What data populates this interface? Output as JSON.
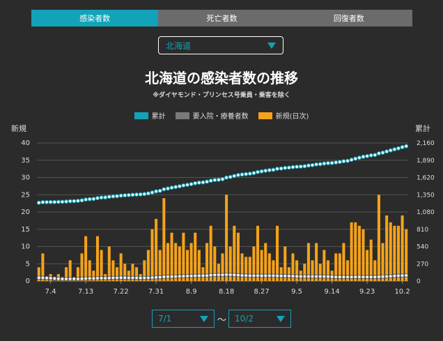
{
  "tabs": [
    {
      "label": "感染者数",
      "active": true
    },
    {
      "label": "死亡者数",
      "active": false
    },
    {
      "label": "回復者数",
      "active": false
    }
  ],
  "region": {
    "selected": "北海道"
  },
  "range": {
    "from": "7/1",
    "to": "10/2",
    "separator": "〜"
  },
  "colors": {
    "accent": "#12a3b8",
    "bars": "#f5a31a",
    "inpatient": "#7a7a7a",
    "cumulative_line": "#7fd3de"
  },
  "chart_data": {
    "type": "bar",
    "title": "北海道の感染者数の推移",
    "subtitle": "※ダイヤモンド・プリンセス号乗員・乗客を除く",
    "left_axis_title": "新規",
    "right_axis_title": "累計",
    "legend": [
      {
        "label": "累計",
        "color": "#12a3b8"
      },
      {
        "label": "要入院・療養者数",
        "color": "#7a7a7a"
      },
      {
        "label": "新規(日次)",
        "color": "#f5a31a"
      }
    ],
    "y_left": {
      "min": 0,
      "max": 40,
      "ticks": [
        "0",
        "5",
        "10",
        "15",
        "20",
        "25",
        "30",
        "35",
        "40"
      ]
    },
    "y_right": {
      "min": 0,
      "max": 2160,
      "ticks": [
        "0",
        "270",
        "540",
        "810",
        "1,080",
        "1,350",
        "1,620",
        "1,890",
        "2,160"
      ]
    },
    "x_tick_labels": [
      {
        "label": "7.4",
        "index": 3
      },
      {
        "label": "7.13",
        "index": 12
      },
      {
        "label": "7.22",
        "index": 21
      },
      {
        "label": "7.31",
        "index": 30
      },
      {
        "label": "8.9",
        "index": 39
      },
      {
        "label": "8.18",
        "index": 48
      },
      {
        "label": "8.27",
        "index": 57
      },
      {
        "label": "9.5",
        "index": 66
      },
      {
        "label": "9.14",
        "index": 75
      },
      {
        "label": "9.23",
        "index": 84
      },
      {
        "label": "10.2",
        "index": 93
      }
    ],
    "series": [
      {
        "name": "新規(日次)",
        "axis": "left",
        "type": "bar",
        "values": [
          4,
          8,
          1,
          2,
          0,
          2,
          1,
          4,
          6,
          1,
          4,
          8,
          13,
          6,
          3,
          13,
          9,
          2,
          10,
          6,
          4,
          8,
          5,
          3,
          5,
          4,
          2,
          6,
          9,
          15,
          18,
          9,
          24,
          11,
          14,
          11,
          10,
          14,
          9,
          11,
          14,
          9,
          4,
          11,
          16,
          10,
          5,
          8,
          25,
          10,
          16,
          14,
          8,
          7,
          7,
          10,
          16,
          9,
          11,
          8,
          6,
          16,
          4,
          10,
          4,
          8,
          6,
          3,
          5,
          11,
          6,
          11,
          5,
          9,
          6,
          3,
          8,
          8,
          11,
          6,
          17,
          17,
          16,
          15,
          9,
          12,
          6,
          25,
          11,
          19,
          17,
          16,
          16,
          19,
          15
        ]
      },
      {
        "name": "累計",
        "axis": "right",
        "type": "line",
        "values": [
          1225,
          1233,
          1234,
          1236,
          1236,
          1238,
          1239,
          1243,
          1249,
          1250,
          1254,
          1262,
          1275,
          1281,
          1284,
          1297,
          1306,
          1308,
          1318,
          1324,
          1328,
          1336,
          1341,
          1344,
          1349,
          1353,
          1355,
          1361,
          1370,
          1385,
          1403,
          1412,
          1436,
          1447,
          1461,
          1472,
          1482,
          1496,
          1505,
          1516,
          1530,
          1539,
          1543,
          1554,
          1570,
          1580,
          1585,
          1593,
          1618,
          1628,
          1644,
          1658,
          1666,
          1673,
          1680,
          1690,
          1706,
          1715,
          1726,
          1734,
          1740,
          1756,
          1760,
          1770,
          1774,
          1782,
          1788,
          1791,
          1796,
          1807,
          1813,
          1824,
          1829,
          1838,
          1844,
          1847,
          1855,
          1863,
          1874,
          1880,
          1897,
          1914,
          1930,
          1945,
          1954,
          1966,
          1972,
          1997,
          2008,
          2027,
          2044,
          2060,
          2076,
          2095,
          2110
        ]
      },
      {
        "name": "要入院・療養者数",
        "axis": "right",
        "type": "line",
        "values": [
          52,
          50,
          48,
          45,
          40,
          36,
          34,
          33,
          35,
          34,
          34,
          36,
          40,
          42,
          41,
          44,
          46,
          45,
          48,
          50,
          50,
          52,
          52,
          50,
          50,
          50,
          48,
          49,
          50,
          54,
          58,
          60,
          66,
          68,
          70,
          72,
          73,
          76,
          78,
          80,
          82,
          84,
          84,
          86,
          92,
          96,
          98,
          96,
          100,
          98,
          96,
          92,
          88,
          86,
          84,
          84,
          84,
          82,
          82,
          84,
          84,
          82,
          80,
          80,
          79,
          76,
          74,
          72,
          72,
          72,
          72,
          72,
          72,
          71,
          70,
          66,
          64,
          64,
          64,
          64,
          64,
          64,
          66,
          64,
          64,
          64,
          64,
          66,
          70,
          72,
          75,
          80,
          84,
          86,
          88
        ]
      }
    ]
  }
}
